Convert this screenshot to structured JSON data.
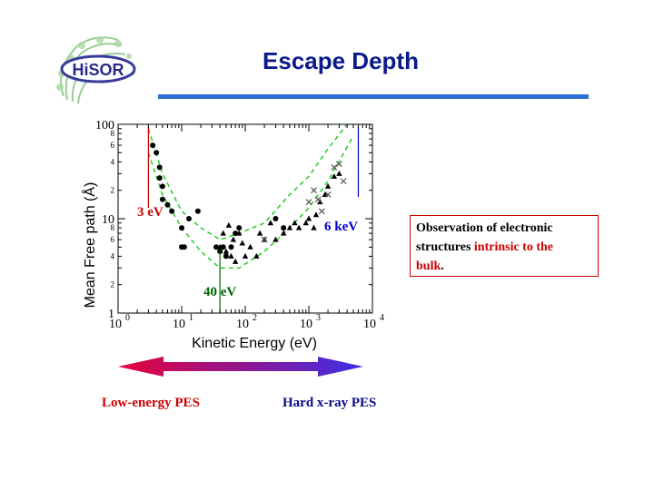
{
  "slide": {
    "title": "Escape Depth",
    "logo_text": "HiSOR"
  },
  "chart_data": {
    "type": "scatter",
    "xscale": "log",
    "yscale": "log",
    "xlim": [
      1,
      10000
    ],
    "ylim": [
      1,
      100
    ],
    "xlabel": "Kinetic Energy (eV)",
    "ylabel": "Mean Free path (Å)",
    "x_ticks": [
      "10",
      "10",
      "10",
      "10",
      "10"
    ],
    "x_tick_exponents": [
      "0",
      "1",
      "2",
      "3",
      "4"
    ],
    "y_ticks": [
      "100",
      "10",
      "1"
    ],
    "y_minor_tick_labels": [
      "8",
      "6",
      "4",
      "2"
    ],
    "series": [
      {
        "marker": "circle",
        "points": [
          [
            3.5,
            60
          ],
          [
            4,
            50
          ],
          [
            4.5,
            35
          ],
          [
            4.5,
            27
          ],
          [
            5,
            22
          ],
          [
            5,
            16
          ],
          [
            6,
            14
          ],
          [
            7,
            12
          ],
          [
            10,
            8
          ],
          [
            10,
            5
          ],
          [
            11,
            5
          ],
          [
            13,
            10
          ],
          [
            18,
            12
          ],
          [
            35,
            5
          ],
          [
            40,
            4.5
          ],
          [
            45,
            5
          ],
          [
            50,
            4
          ],
          [
            60,
            5
          ],
          [
            70,
            7
          ],
          [
            80,
            8
          ],
          [
            300,
            10
          ],
          [
            400,
            8
          ]
        ]
      },
      {
        "marker": "triangle",
        "points": [
          [
            40,
            5
          ],
          [
            45,
            7
          ],
          [
            50,
            4.5
          ],
          [
            55,
            8.5
          ],
          [
            60,
            4
          ],
          [
            65,
            6
          ],
          [
            70,
            3.5
          ],
          [
            80,
            7
          ],
          [
            90,
            5.5
          ],
          [
            100,
            4
          ],
          [
            120,
            5
          ],
          [
            150,
            4
          ],
          [
            170,
            7
          ],
          [
            200,
            6
          ],
          [
            250,
            9
          ],
          [
            300,
            6
          ],
          [
            400,
            7
          ],
          [
            500,
            8
          ],
          [
            600,
            9
          ],
          [
            700,
            8
          ],
          [
            900,
            9
          ],
          [
            1000,
            10
          ],
          [
            1200,
            8
          ],
          [
            1300,
            11
          ],
          [
            1500,
            15
          ],
          [
            1800,
            18
          ],
          [
            2000,
            22
          ],
          [
            2500,
            28
          ],
          [
            3000,
            30
          ]
        ]
      },
      {
        "marker": "cross",
        "points": [
          [
            200,
            6
          ],
          [
            1000,
            15
          ],
          [
            1200,
            20
          ],
          [
            1400,
            16
          ],
          [
            1600,
            12
          ],
          [
            2000,
            18
          ],
          [
            2500,
            35
          ],
          [
            3000,
            38
          ],
          [
            3500,
            25
          ]
        ]
      }
    ],
    "fits": [
      {
        "style": "dashed",
        "color": "#22cc22",
        "points": [
          [
            3,
            90
          ],
          [
            5,
            30
          ],
          [
            10,
            12
          ],
          [
            20,
            8
          ],
          [
            40,
            6
          ],
          [
            80,
            7
          ],
          [
            200,
            9
          ],
          [
            500,
            18
          ],
          [
            1000,
            28
          ],
          [
            2000,
            55
          ],
          [
            4000,
            100
          ]
        ]
      },
      {
        "style": "dashed",
        "color": "#22cc22",
        "points": [
          [
            3,
            50
          ],
          [
            5,
            18
          ],
          [
            10,
            8
          ],
          [
            20,
            4.5
          ],
          [
            40,
            3
          ],
          [
            80,
            3
          ],
          [
            200,
            4.5
          ],
          [
            500,
            8
          ],
          [
            1000,
            13
          ],
          [
            2000,
            25
          ],
          [
            5000,
            75
          ]
        ]
      }
    ],
    "markers": [
      {
        "label": "3 eV",
        "x": 3,
        "color": "#cc0000"
      },
      {
        "label": "40 eV",
        "x": 40,
        "color": "#006600"
      },
      {
        "label": "6 keV",
        "x": 6000,
        "color": "#0000cc"
      }
    ]
  },
  "box": {
    "line1": "Observation of electronic",
    "line2_a": "structures ",
    "line2_red": "intrinsic to the",
    "line3_red": "bulk",
    "line3_end": "."
  },
  "arrow": {
    "low_label": "Low-energy PES",
    "hard_label": "Hard x-ray PES",
    "color_low": "#e8003a",
    "color_high": "#3a2fe8"
  },
  "colors": {
    "title": "#0a1a8c",
    "rule": "#2c6fd6",
    "red": "#cc0000",
    "green": "#006600",
    "blue": "#0000cc",
    "fit": "#22cc22"
  }
}
